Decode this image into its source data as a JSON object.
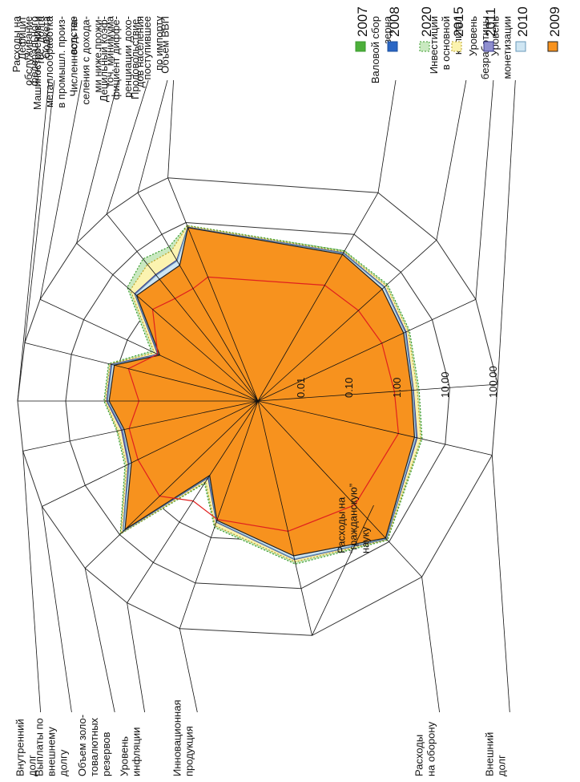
{
  "chart_data": {
    "type": "radar",
    "scale": "log",
    "rlim": [
      0.001,
      100
    ],
    "rings": [
      0.01,
      0.1,
      1,
      10,
      100
    ],
    "ring_labels": [
      "0.01",
      "0.10",
      "1.00",
      "10.00",
      "100.00"
    ],
    "orientation": "rotated-90-ccw",
    "legend_position": "top-right",
    "categories": [
      {
        "id": "gdp",
        "lines": [
          "Объем ВВП"
        ]
      },
      {
        "id": "food_import",
        "lines": [
          "Продовольствие,",
          "поступившее",
          "по импорту"
        ]
      },
      {
        "id": "decile",
        "lines": [
          "Децильный коэф-",
          "фициент диффе-",
          "ренциации дохо-",
          "дов населения"
        ]
      },
      {
        "id": "poverty",
        "lines": [
          "Численность на-",
          "селения с дохода-",
          "ми ниже прожи-",
          "точ. минимума"
        ]
      },
      {
        "id": "machinery",
        "lines": [
          "Машиностроение и",
          "металлообработка",
          "в промышл. произ-",
          "водстве"
        ]
      },
      {
        "id": "deficit",
        "lines": [
          "Дефицит",
          "федерального",
          "бюджета"
        ]
      },
      {
        "id": "debt_service",
        "lines": [
          "Расходы на",
          "обслуживание",
          "гос. долга"
        ]
      },
      {
        "id": "internal_debt",
        "lines": [
          "Внутренний",
          "долг"
        ]
      },
      {
        "id": "ext_payments",
        "lines": [
          "Выплаты по",
          "внешнему",
          "долгу"
        ]
      },
      {
        "id": "reserves",
        "lines": [
          "Объем золо-",
          "товалютных",
          "резервов"
        ]
      },
      {
        "id": "inflation",
        "lines": [
          "Уровень",
          "инфляции"
        ]
      },
      {
        "id": "innovation",
        "lines": [
          "Инновационная",
          "продукция"
        ]
      },
      {
        "id": "science",
        "lines": [
          "Расходы на",
          "“гражданскую”",
          "науку"
        ]
      },
      {
        "id": "defense",
        "lines": [
          "Расходы",
          "на оборону"
        ]
      },
      {
        "id": "external_debt",
        "lines": [
          "Внешний",
          "долг"
        ]
      },
      {
        "id": "monetization",
        "lines": [
          "Уровень",
          "монетизации"
        ]
      },
      {
        "id": "unemployment",
        "lines": [
          "Уровень",
          "безработицы"
        ]
      },
      {
        "id": "investment",
        "lines": [
          "Инвестиции",
          "в основной",
          "капитал"
        ]
      },
      {
        "id": "grain",
        "lines": [
          "Валовой сбор",
          "зерна"
        ]
      }
    ],
    "angles_deg": [
      112,
      120,
      129,
      139,
      155,
      166,
      180,
      192,
      206,
      224,
      237,
      251,
      283,
      313,
      347,
      364,
      385,
      402,
      420
    ],
    "series": [
      {
        "name": "2007",
        "color": "#3a9a2e",
        "fill": "#4caf3a",
        "dash": "",
        "values": [
          8.2,
          3.5,
          4.0,
          3.0,
          0.23,
          1.5,
          1.5,
          0.9,
          1.1,
          9.0,
          0.09,
          0.5,
          2.5,
          8.5,
          2.7,
          1.9,
          2.8,
          3.8,
          4.0
        ]
      },
      {
        "name": "2008",
        "color": "#1a4f9c",
        "fill": "#2a66c4",
        "dash": "",
        "values": [
          8.0,
          2.4,
          3.5,
          2.6,
          0.2,
          1.4,
          1.4,
          0.8,
          1.0,
          8.3,
          0.08,
          0.5,
          2.5,
          8.5,
          2.6,
          1.8,
          2.6,
          3.6,
          3.7
        ]
      },
      {
        "name": "2020",
        "color": "#3a9a2e",
        "fill": "#c9e9c0",
        "dash": "2,2",
        "values": [
          8.6,
          5.0,
          6.3,
          4.0,
          0.28,
          1.6,
          1.6,
          1.0,
          1.2,
          9.6,
          0.11,
          0.6,
          3.0,
          9.0,
          3.2,
          2.3,
          3.0,
          4.2,
          4.0
        ]
      },
      {
        "name": "2015",
        "color": "#b8a22a",
        "fill": "#fbf3b0",
        "dash": "2,2",
        "values": [
          8.4,
          4.0,
          4.5,
          3.3,
          0.24,
          1.5,
          1.5,
          0.95,
          1.1,
          9.2,
          0.1,
          0.55,
          2.7,
          8.6,
          3.0,
          2.1,
          2.8,
          3.9,
          3.8
        ]
      },
      {
        "name": "2011",
        "color": "#3b3b8f",
        "fill": "#8f8fcf",
        "dash": "",
        "values": [
          7.9,
          2.4,
          2.4,
          2.5,
          0.2,
          1.4,
          1.4,
          0.8,
          1.0,
          8.0,
          0.08,
          0.46,
          2.4,
          8.3,
          2.5,
          1.75,
          2.5,
          3.5,
          3.6
        ]
      },
      {
        "name": "2010",
        "color": "#6a98b8",
        "fill": "#cfe6f3",
        "dash": "",
        "values": [
          7.8,
          2.3,
          2.3,
          2.4,
          0.19,
          1.35,
          1.35,
          0.75,
          0.95,
          7.9,
          0.075,
          0.45,
          2.35,
          8.2,
          2.4,
          1.7,
          2.4,
          3.4,
          3.5
        ]
      },
      {
        "name": "2009",
        "color": "#222222",
        "fill": "#f7921e",
        "dash": "",
        "values": [
          7.7,
          1.8,
          1.8,
          2.2,
          0.18,
          1.2,
          1.25,
          0.7,
          0.85,
          7.0,
          0.07,
          0.42,
          2.0,
          7.8,
          2.2,
          1.6,
          2.2,
          3.0,
          3.3
        ]
      }
    ],
    "threshold": {
      "color": "#e0201e",
      "values": [
        0.6,
        0.5,
        0.55,
        0.8,
        0.2,
        0.6,
        0.3,
        0.55,
        0.6,
        0.7,
        0.3,
        0.4,
        0.6,
        0.9,
        1.0,
        0.7,
        0.7,
        0.65,
        0.6
      ]
    }
  }
}
